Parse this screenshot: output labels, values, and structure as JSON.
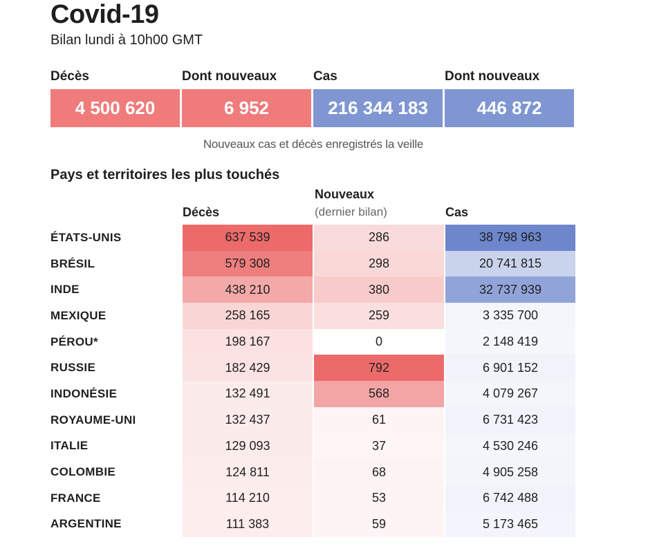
{
  "header": {
    "title": "Covid-19",
    "subtitle": "Bilan lundi à 10h00 GMT"
  },
  "summary": [
    {
      "label": "Décès",
      "value": "4 500 620",
      "color": "#f07b7b"
    },
    {
      "label": "Dont nouveaux",
      "value": "6 952",
      "color": "#f07b7b"
    },
    {
      "label": "Cas",
      "value": "216 344 183",
      "color": "#7f96d2"
    },
    {
      "label": "Dont nouveaux",
      "value": "446 872",
      "color": "#7f96d2"
    }
  ],
  "note": "Nouveaux cas et décès enregistrés la veille",
  "table": {
    "title": "Pays et territoires les plus touchés",
    "col_deaths": "Décès",
    "col_new": "Nouveaux",
    "col_new_sub": "(dernier bilan)",
    "col_cases": "Cas"
  },
  "colors": {
    "deaths_scale": "#ec6a6a",
    "cases_scale": "#6d86cc"
  },
  "chart_data": {
    "type": "table",
    "title": "Pays et territoires les plus touchés",
    "columns": [
      "Décès",
      "Nouveaux (dernier bilan)",
      "Cas"
    ],
    "rows": [
      {
        "country": "ÉTATS-UNIS",
        "deaths": "637 539",
        "new": "286",
        "cases": "38 798 963",
        "deaths_value": 637539,
        "new_value": 286,
        "cases_value": 38798963
      },
      {
        "country": "BRÉSIL",
        "deaths": "579 308",
        "new": "298",
        "cases": "20 741 815",
        "deaths_value": 579308,
        "new_value": 298,
        "cases_value": 20741815
      },
      {
        "country": "INDE",
        "deaths": "438 210",
        "new": "380",
        "cases": "32 737 939",
        "deaths_value": 438210,
        "new_value": 380,
        "cases_value": 32737939
      },
      {
        "country": "MEXIQUE",
        "deaths": "258 165",
        "new": "259",
        "cases": "3 335 700",
        "deaths_value": 258165,
        "new_value": 259,
        "cases_value": 3335700
      },
      {
        "country": "PÉROU*",
        "deaths": "198 167",
        "new": "0",
        "cases": "2 148 419",
        "deaths_value": 198167,
        "new_value": 0,
        "cases_value": 2148419
      },
      {
        "country": "RUSSIE",
        "deaths": "182 429",
        "new": "792",
        "cases": "6 901 152",
        "deaths_value": 182429,
        "new_value": 792,
        "cases_value": 6901152
      },
      {
        "country": "INDONÉSIE",
        "deaths": "132 491",
        "new": "568",
        "cases": "4 079 267",
        "deaths_value": 132491,
        "new_value": 568,
        "cases_value": 4079267
      },
      {
        "country": "ROYAUME-UNI",
        "deaths": "132 437",
        "new": "61",
        "cases": "6 731 423",
        "deaths_value": 132437,
        "new_value": 61,
        "cases_value": 6731423
      },
      {
        "country": "ITALIE",
        "deaths": "129 093",
        "new": "37",
        "cases": "4 530 246",
        "deaths_value": 129093,
        "new_value": 37,
        "cases_value": 4530246
      },
      {
        "country": "COLOMBIE",
        "deaths": "124 811",
        "new": "68",
        "cases": "4 905 258",
        "deaths_value": 124811,
        "new_value": 68,
        "cases_value": 4905258
      },
      {
        "country": "FRANCE",
        "deaths": "114 210",
        "new": "53",
        "cases": "6 742 488",
        "deaths_value": 114210,
        "new_value": 53,
        "cases_value": 6742488
      },
      {
        "country": "ARGENTINE",
        "deaths": "111 383",
        "new": "59",
        "cases": "5 173 465",
        "deaths_value": 111383,
        "new_value": 59,
        "cases_value": 5173465
      }
    ]
  }
}
